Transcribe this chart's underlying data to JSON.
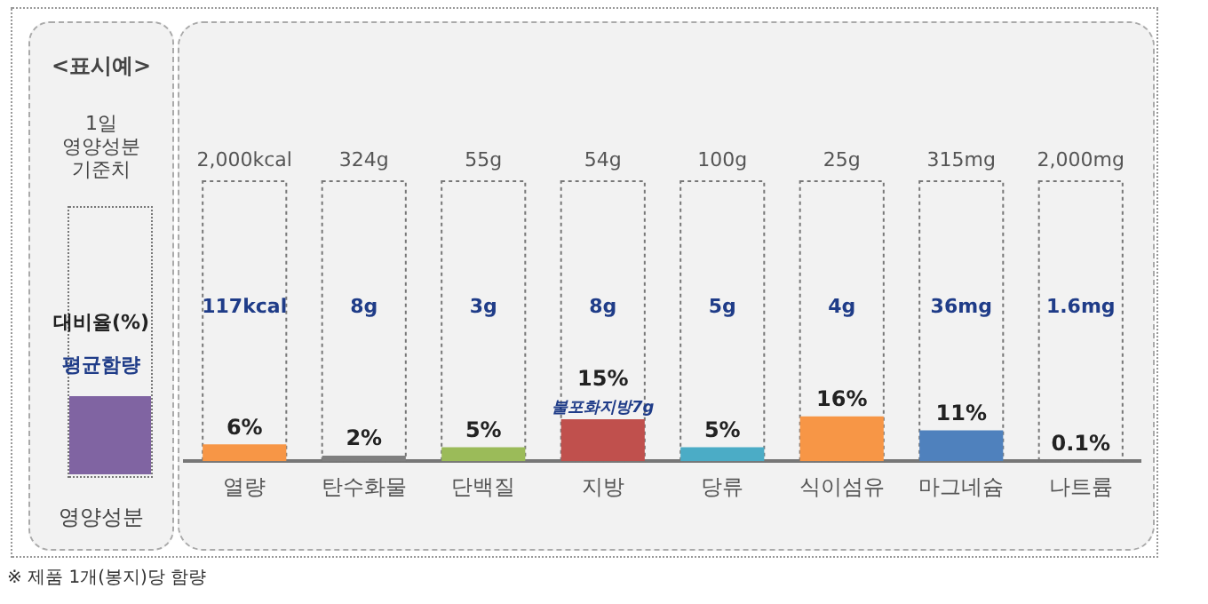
{
  "chart_data": {
    "type": "bar",
    "categories": [
      "열량",
      "탄수화물",
      "단백질",
      "지방",
      "당류",
      "식이섬유",
      "마그네슘",
      "나트륨"
    ],
    "values": [
      6,
      2,
      5,
      15,
      5,
      16,
      11,
      0.1
    ],
    "colors": [
      "#f79646",
      "#7f7f7f",
      "#9bbb59",
      "#c0504d",
      "#4bacc6",
      "#f79646",
      "#4f81bd",
      "#7f7f7f"
    ],
    "value_labels": [
      "6%",
      "2%",
      "5%",
      "15%",
      "5%",
      "16%",
      "11%",
      "0.1%"
    ],
    "ylim": [
      0,
      100
    ],
    "tick_labels": "x",
    "grid": false,
    "legend": false,
    "annotations": [
      "<표시예>",
      "1일\n영양성분\n기준치",
      "대비율(%)",
      "평균함량",
      "영양성분",
      "※ 제품 1개(봉지)당 함량",
      "2,000kcal",
      "324g",
      "55g",
      "54g",
      "100g",
      "25g",
      "315mg",
      "2,000mg",
      "117kcal",
      "8g",
      "3g",
      "8g",
      "5g",
      "4g",
      "36mg",
      "1.6mg",
      {
        "text": "불포화지방7g",
        "x": "지방",
        "y": 15
      }
    ]
  }
}
